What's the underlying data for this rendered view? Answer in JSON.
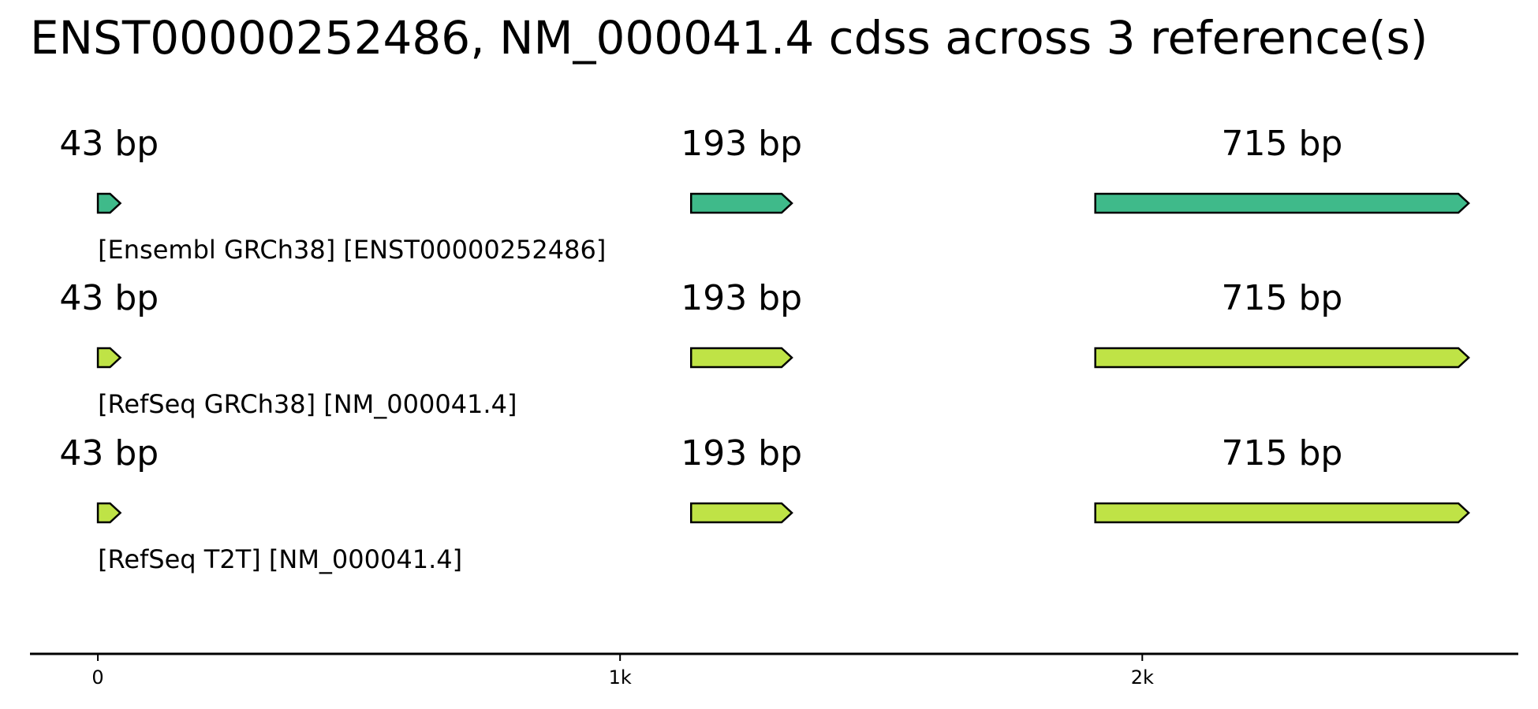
{
  "title": "ENST00000252486, NM_000041.4 cdss across 3 reference(s)",
  "colors": {
    "ensembl": "#3fba8a",
    "refseq": "#bfe346",
    "outline": "#000000",
    "axis": "#000000"
  },
  "chart_data": {
    "type": "gene-track",
    "x_range": [
      -130,
      2720
    ],
    "axis_ticks": [
      {
        "value": 0,
        "label": "0"
      },
      {
        "value": 1000,
        "label": "1k"
      },
      {
        "value": 2000,
        "label": "2k"
      }
    ],
    "tracks": [
      {
        "reference": "[Ensembl GRCh38] [ENST00000252486]",
        "color_key": "ensembl",
        "exons": [
          {
            "start": 0,
            "end": 43,
            "label": "43 bp"
          },
          {
            "start": 1136,
            "end": 1329,
            "label": "193 bp"
          },
          {
            "start": 1910,
            "end": 2625,
            "label": "715 bp"
          }
        ]
      },
      {
        "reference": "[RefSeq GRCh38] [NM_000041.4]",
        "color_key": "refseq",
        "exons": [
          {
            "start": 0,
            "end": 43,
            "label": "43 bp"
          },
          {
            "start": 1136,
            "end": 1329,
            "label": "193 bp"
          },
          {
            "start": 1910,
            "end": 2625,
            "label": "715 bp"
          }
        ]
      },
      {
        "reference": "[RefSeq T2T] [NM_000041.4]",
        "color_key": "refseq",
        "exons": [
          {
            "start": 0,
            "end": 43,
            "label": "43 bp"
          },
          {
            "start": 1136,
            "end": 1329,
            "label": "193 bp"
          },
          {
            "start": 1910,
            "end": 2625,
            "label": "715 bp"
          }
        ]
      }
    ]
  }
}
